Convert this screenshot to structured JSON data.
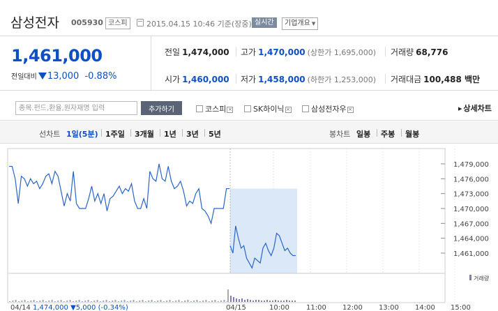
{
  "header": {
    "name": "삼성전자",
    "code": "005930",
    "market": "코스피",
    "datetime": "2015.04.15 10:46 기준(장중)",
    "realtime": "실시간",
    "overview": "기업개요"
  },
  "quote": {
    "price": "1,461,000",
    "change_label": "전일대비",
    "change": "13,000",
    "change_pct": "-0.88%"
  },
  "stats": {
    "prev_close": {
      "label": "전일",
      "value": "1,474,000"
    },
    "high": {
      "label": "고가",
      "value": "1,470,000",
      "sub": "(상한가 1,695,000)"
    },
    "volume": {
      "label": "거래량",
      "value": "68,776"
    },
    "open": {
      "label": "시가",
      "value": "1,460,000"
    },
    "low": {
      "label": "저가",
      "value": "1,458,000",
      "sub": "(하한가 1,253,000)"
    },
    "amount": {
      "label": "거래대금",
      "value": "100,488 백만"
    }
  },
  "search": {
    "placeholder": "종목.펀드,환율,원자재명 입력",
    "add_button": "추가하기",
    "compare": [
      "코스피",
      "SK하이닉",
      "삼성전자우"
    ],
    "detail": "상세차트"
  },
  "periods": {
    "label": "선차트",
    "items": [
      "1일(5분)",
      "1주일",
      "3개월",
      "1년",
      "3년",
      "5년"
    ],
    "active": 0,
    "candle_label": "봉차트",
    "candle_items": [
      "일봉",
      "주봉",
      "월봉"
    ]
  },
  "chart_data": {
    "type": "line",
    "yticks": [
      "1,479,000",
      "1,476,000",
      "1,473,000",
      "1,470,000",
      "1,467,000",
      "1,464,000",
      "1,461,000"
    ],
    "ylim": [
      1458000,
      1480000
    ],
    "xticks": [
      "04/15",
      "10:00",
      "11:00",
      "12:00",
      "13:00",
      "14:00",
      "15:00"
    ],
    "volume_label": "거래량",
    "footer": {
      "date": "04/14",
      "price": "1,474,000",
      "change": "5,000",
      "pct": "(-0.34%)"
    },
    "series": [
      {
        "values": [
          1478500,
          1478500,
          1476000,
          1471000,
          1476500,
          1476000,
          1474500,
          1476000,
          1475000,
          1475500,
          1474000,
          1475000,
          1476500,
          1477000,
          1475000,
          1477500,
          1476500,
          1473500,
          1470500,
          1473000,
          1471500,
          1477500,
          1471000,
          1470000,
          1470000,
          1470000,
          1472000,
          1474500,
          1471500,
          1473000,
          1471000,
          1473000,
          1469500,
          1472000,
          1472500,
          1473500,
          1474500,
          1473000,
          1474000,
          1473500,
          1475000,
          1471500,
          1470000,
          1470000,
          1472000,
          1470000,
          1477500,
          1476000,
          1475500,
          1479000,
          1476000,
          1475500,
          1478500,
          1475500,
          1474000,
          1474500,
          1475500,
          1473500,
          1470500,
          1471500,
          1471000,
          1473000,
          1474000,
          1470000,
          1469500,
          1468500,
          1467000,
          1470000,
          1470000,
          1470000,
          1470000,
          1474000,
          1474000
        ]
      },
      {
        "values": [
          1462500,
          1461000,
          1466500,
          1464000,
          1462000,
          1462500,
          1460000,
          1459000,
          1458000,
          1460000,
          1459500,
          1459000,
          1462000,
          1463000,
          1461500,
          1460500,
          1462000,
          1465000,
          1464500,
          1463000,
          1461500,
          1462000,
          1461000,
          1460500,
          1460500
        ]
      }
    ]
  }
}
